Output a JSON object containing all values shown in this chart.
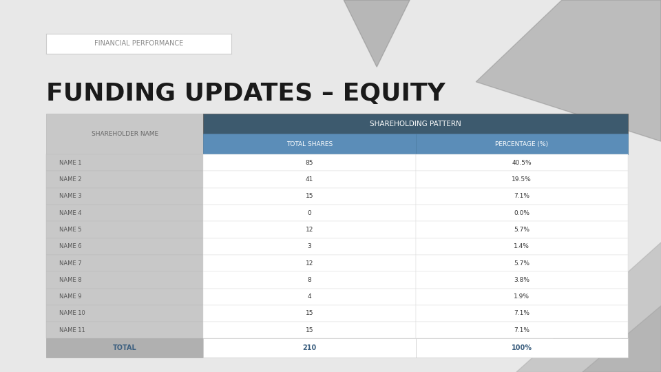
{
  "title": "FUNDING UPDATES – EQUITY",
  "subtitle": "FINANCIAL PERFORMANCE",
  "table_header_main": "SHAREHOLDING PATTERN",
  "col1_header": "SHAREHOLDER NAME",
  "col2_header": "TOTAL SHARES",
  "col3_header": "PERCENTAGE (%)",
  "rows": [
    [
      "NAME 1",
      "85",
      "40.5%"
    ],
    [
      "NAME 2",
      "41",
      "19.5%"
    ],
    [
      "NAME 3",
      "15",
      "7.1%"
    ],
    [
      "NAME 4",
      "0",
      "0.0%"
    ],
    [
      "NAME 5",
      "12",
      "5.7%"
    ],
    [
      "NAME 6",
      "3",
      "1.4%"
    ],
    [
      "NAME 7",
      "12",
      "5.7%"
    ],
    [
      "NAME 8",
      "8",
      "3.8%"
    ],
    [
      "NAME 9",
      "4",
      "1.9%"
    ],
    [
      "NAME 10",
      "15",
      "7.1%"
    ],
    [
      "NAME 11",
      "15",
      "7.1%"
    ]
  ],
  "total_row": [
    "TOTAL",
    "210",
    "100%"
  ],
  "page_bg": "#e8e8e8",
  "header_dark_color": "#3d5a6e",
  "header_blue_color": "#5b8db8",
  "col1_bg": "#c8c8c8",
  "col1_text": "#555555",
  "total_row_bg": "#b0b0b0",
  "total_text_color": "#3d6080",
  "title_color": "#1a1a1a",
  "subtitle_color": "#888888",
  "subtitle_border": "#cccccc"
}
